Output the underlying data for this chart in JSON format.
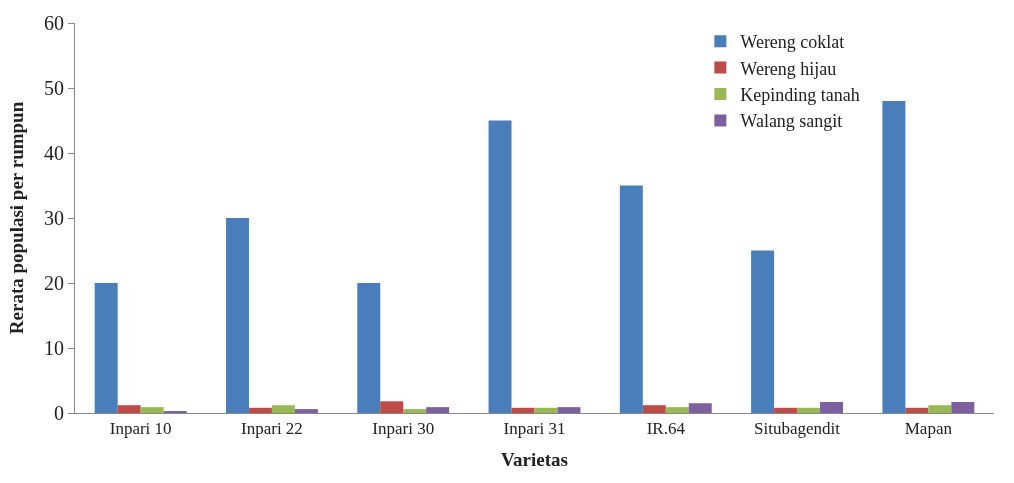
{
  "chart_data": {
    "type": "bar",
    "xlabel": "Varietas",
    "ylabel": "Rerata populasi per rumpun",
    "categories": [
      "Inpari 10",
      "Inpari 22",
      "Inpari 30",
      "Inpari 31",
      "IR.64",
      "Situbagendit",
      "Mapan"
    ],
    "series": [
      {
        "name": "Wereng coklat",
        "color": "#4a7ebb",
        "values": [
          20,
          30,
          20,
          45,
          35,
          25,
          48
        ]
      },
      {
        "name": "Wereng hijau",
        "color": "#be4b48",
        "values": [
          1.2,
          0.8,
          1.8,
          0.8,
          1.2,
          0.8,
          0.8
        ]
      },
      {
        "name": "Kepinding tanah",
        "color": "#98b954",
        "values": [
          0.9,
          1.2,
          0.6,
          0.8,
          0.9,
          0.8,
          1.2
        ]
      },
      {
        "name": "Walang sangit",
        "color": "#7d60a0",
        "values": [
          0.3,
          0.6,
          0.9,
          0.9,
          1.5,
          1.7,
          1.7
        ]
      }
    ],
    "ylim": [
      0,
      60
    ],
    "yticks": [
      0,
      10,
      20,
      30,
      40,
      50,
      60
    ],
    "legend": "top right"
  }
}
